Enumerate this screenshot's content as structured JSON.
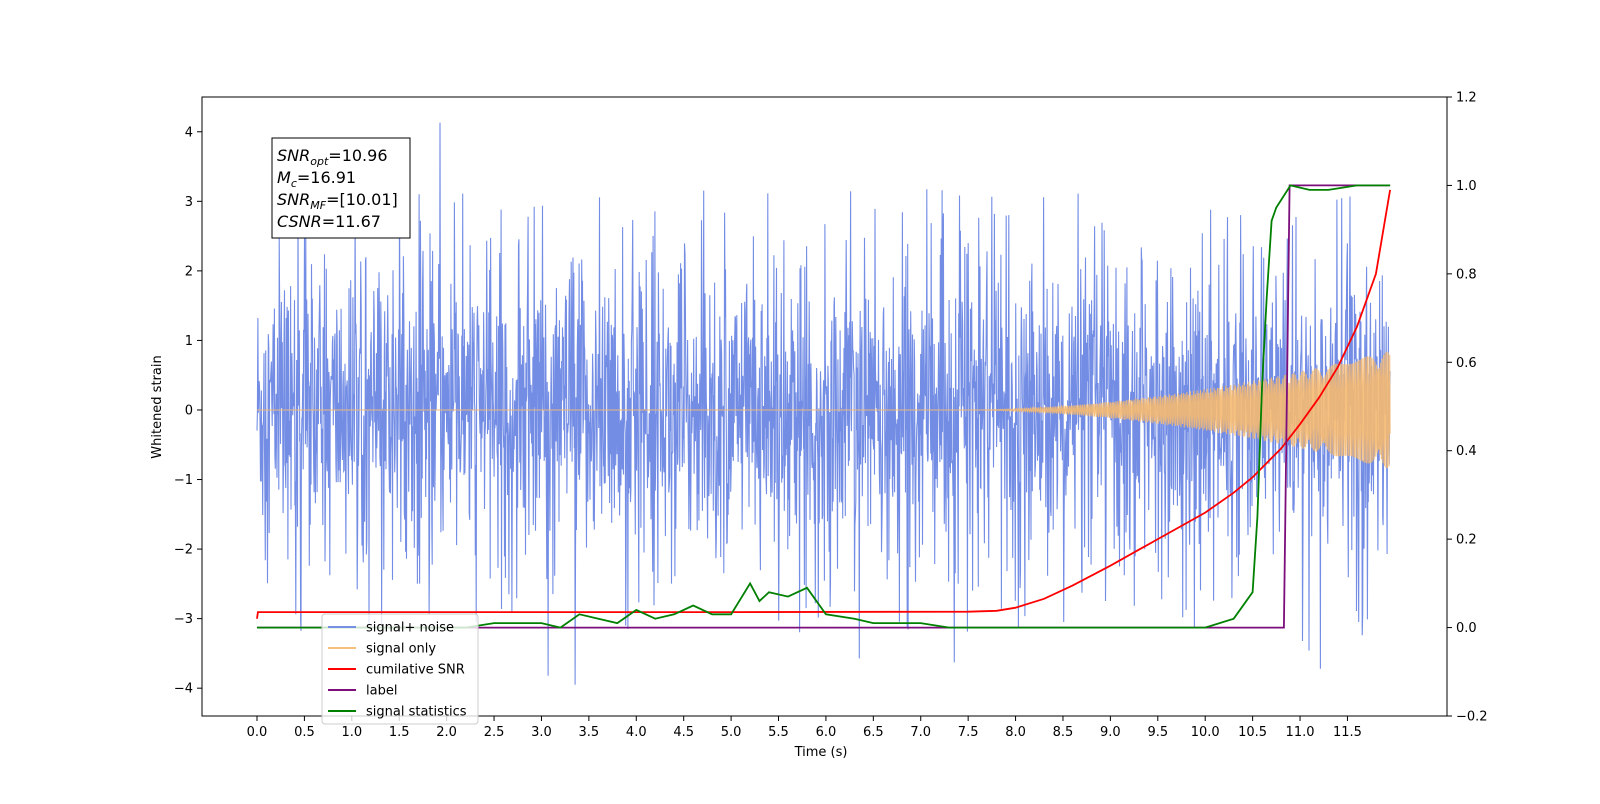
{
  "chart_data": {
    "type": "line",
    "xlabel": "Time (s)",
    "ylabel": "Whitened strain",
    "ylabel_right": "",
    "x_ticks": [
      "0.0",
      "0.5",
      "1.0",
      "1.5",
      "2.0",
      "2.5",
      "3.0",
      "3.5",
      "4.0",
      "4.5",
      "5.0",
      "5.5",
      "6.0",
      "6.5",
      "7.0",
      "7.5",
      "8.0",
      "8.5",
      "9.0",
      "9.5",
      "10.0",
      "10.5",
      "11.0",
      "11.5"
    ],
    "x_tick_values": [
      0.0,
      0.5,
      1.0,
      1.5,
      2.0,
      2.5,
      3.0,
      3.5,
      4.0,
      4.5,
      5.0,
      5.5,
      6.0,
      6.5,
      7.0,
      7.5,
      8.0,
      8.5,
      9.0,
      9.5,
      10.0,
      10.5,
      11.0,
      11.5
    ],
    "y_ticks_left": [
      "−4",
      "−3",
      "−2",
      "−1",
      "0",
      "1",
      "2",
      "3",
      "4"
    ],
    "y_tick_values_left": [
      -4,
      -3,
      -2,
      -1,
      0,
      1,
      2,
      3,
      4
    ],
    "y_ticks_right": [
      "−0.2",
      "0.0",
      "0.2",
      "0.4",
      "0.6",
      "0.8",
      "1.0",
      "1.2"
    ],
    "y_tick_values_right": [
      -0.2,
      0.0,
      0.2,
      0.4,
      0.6,
      0.8,
      1.0,
      1.2
    ],
    "xlim": [
      -0.58,
      12.55
    ],
    "ylim_left": [
      -4.4,
      4.5
    ],
    "ylim_right": [
      -0.2,
      1.2
    ],
    "grid": false,
    "legend_position": "lower-left",
    "info_box": {
      "lines": [
        {
          "main": "SNR",
          "sub": "opt",
          "rest": "=10.96"
        },
        {
          "main": "M",
          "sub": "c",
          "rest": "=16.91"
        },
        {
          "main": "SNR",
          "sub": "MF",
          "rest": "=[10.01]"
        },
        {
          "main": "CSNR",
          "sub": "",
          "rest": "=11.67"
        }
      ]
    },
    "series": [
      {
        "name": "signal+ noise",
        "axis": "left",
        "color": "#6c87e4",
        "noise_band": {
          "start_t": 0.0,
          "end_t": 11.95,
          "typical_amplitude": 1.3,
          "occasional_peaks": [
            4.13,
            -3.95,
            3.68,
            -3.72,
            -3.63,
            3.25
          ]
        }
      },
      {
        "name": "signal only",
        "axis": "left",
        "color": "#f5b971",
        "chirp": {
          "start_t": 7.5,
          "end_t": 11.95,
          "final_amplitude": 0.85
        }
      },
      {
        "name": "cumilative SNR",
        "axis": "right",
        "color": "#ff0000",
        "x": [
          0.0,
          0.01,
          1.0,
          5.0,
          7.5,
          7.8,
          8.0,
          8.3,
          8.6,
          9.0,
          9.5,
          10.0,
          10.3,
          10.5,
          10.8,
          11.0,
          11.2,
          11.4,
          11.6,
          11.8,
          11.95
        ],
        "y": [
          0.02,
          0.035,
          0.035,
          0.035,
          0.036,
          0.038,
          0.045,
          0.065,
          0.095,
          0.14,
          0.2,
          0.26,
          0.305,
          0.34,
          0.405,
          0.46,
          0.52,
          0.59,
          0.68,
          0.8,
          0.99
        ]
      },
      {
        "name": "label",
        "axis": "right",
        "color": "#7b0e7b",
        "x": [
          0.0,
          10.83,
          10.89,
          11.95
        ],
        "y": [
          0.0,
          0.0,
          1.0,
          1.0
        ]
      },
      {
        "name": "signal statistics",
        "axis": "right",
        "color": "#008000",
        "x": [
          0.0,
          2.2,
          2.5,
          3.0,
          3.2,
          3.4,
          3.6,
          3.8,
          4.0,
          4.2,
          4.4,
          4.6,
          4.8,
          5.0,
          5.2,
          5.3,
          5.4,
          5.6,
          5.8,
          6.0,
          6.3,
          6.5,
          6.8,
          7.0,
          7.3,
          7.6,
          8.0,
          8.3,
          9.0,
          10.0,
          10.3,
          10.5,
          10.55,
          10.6,
          10.65,
          10.7,
          10.75,
          10.9,
          11.1,
          11.3,
          11.6,
          11.95
        ],
        "y": [
          0.0,
          0.0,
          0.01,
          0.01,
          0.0,
          0.03,
          0.02,
          0.01,
          0.04,
          0.02,
          0.03,
          0.05,
          0.03,
          0.03,
          0.1,
          0.06,
          0.08,
          0.07,
          0.09,
          0.03,
          0.02,
          0.01,
          0.01,
          0.01,
          0.0,
          0.0,
          0.0,
          0.0,
          0.0,
          0.0,
          0.02,
          0.08,
          0.25,
          0.55,
          0.75,
          0.92,
          0.95,
          1.0,
          0.99,
          0.99,
          1.0,
          1.0
        ]
      }
    ]
  }
}
